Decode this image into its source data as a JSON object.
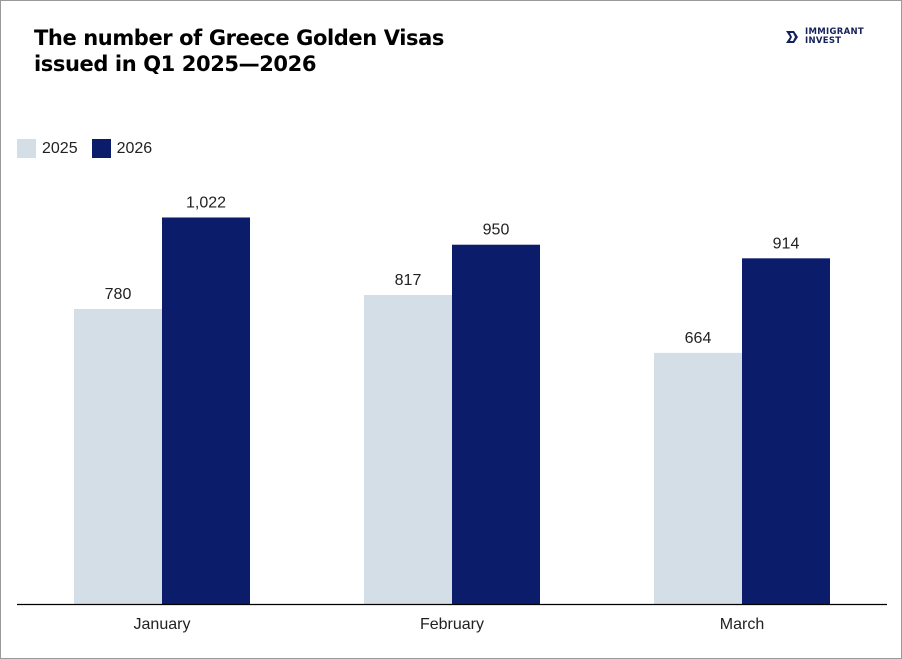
{
  "header": {
    "title_line1": "The number of Greece Golden Visas",
    "title_line2": "issued in Q1 2025—2026",
    "logo_line1": "IMMIGRANT",
    "logo_line2": "INVEST"
  },
  "colors": {
    "series_2025": "#d4dee6",
    "series_2026": "#0b1c6b",
    "logo": "#14205a"
  },
  "chart_data": {
    "type": "bar",
    "title": "The number of Greece Golden Visas issued in Q1 2025—2026",
    "categories": [
      "January",
      "February",
      "March"
    ],
    "series": [
      {
        "name": "2025",
        "values": [
          780,
          817,
          664
        ],
        "labels": [
          "780",
          "817",
          "664"
        ]
      },
      {
        "name": "2026",
        "values": [
          1022,
          950,
          914
        ],
        "labels": [
          "1,022",
          "950",
          "914"
        ]
      }
    ],
    "ylim": [
      0,
      1100
    ],
    "xlabel": "",
    "ylabel": "",
    "grid": false,
    "legend": "top-left"
  }
}
